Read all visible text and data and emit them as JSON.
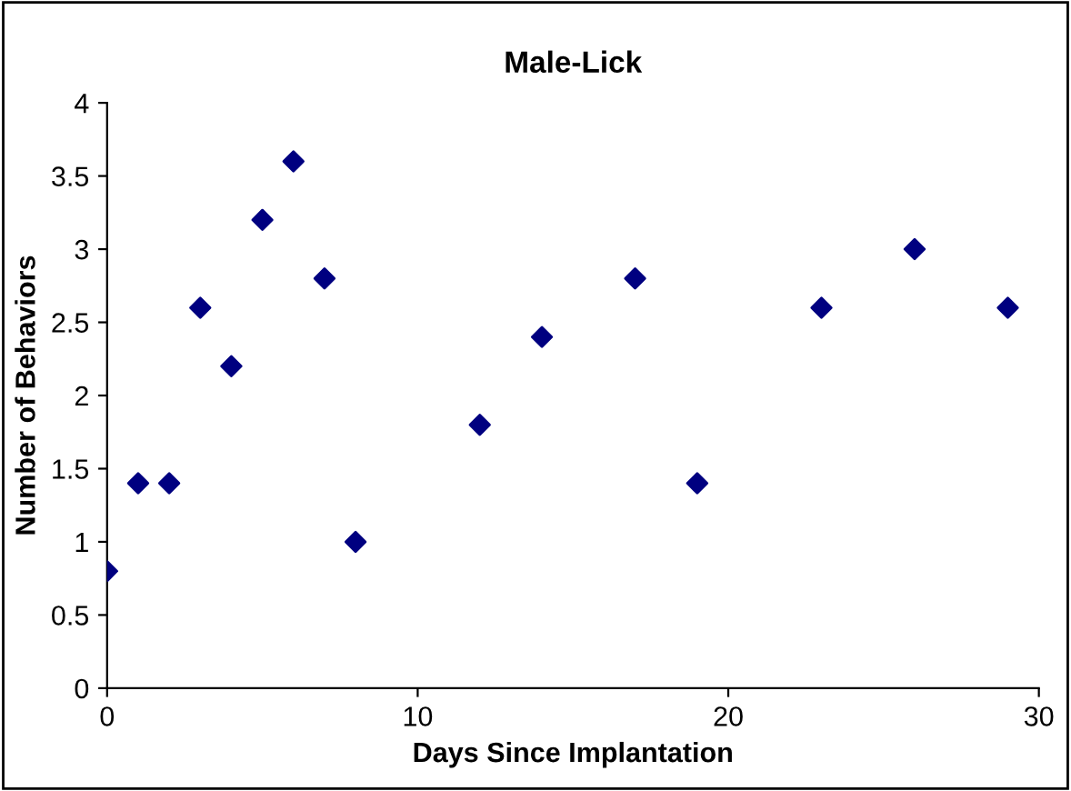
{
  "chart_data": {
    "type": "scatter",
    "title": "Male-Lick",
    "xlabel": "Days Since Implantation",
    "ylabel": "Number of Behaviors",
    "x": [
      0,
      1,
      2,
      3,
      4,
      5,
      6,
      7,
      8,
      12,
      14,
      17,
      19,
      23,
      26,
      29
    ],
    "series": [
      {
        "color": "#000080",
        "values": [
          0.8,
          1.4,
          1.4,
          2.6,
          2.2,
          3.2,
          3.6,
          2.8,
          1.0,
          1.8,
          2.4,
          2.8,
          1.4,
          2.6,
          3.0,
          2.6
        ]
      }
    ],
    "xlim": [
      0,
      30
    ],
    "xticks": [
      0,
      10,
      20,
      30
    ],
    "ylim": [
      0,
      4
    ],
    "yticks": [
      0,
      0.5,
      1,
      1.5,
      2,
      2.5,
      3,
      3.5,
      4
    ],
    "marker": "diamond",
    "grid": false,
    "legend": false
  }
}
